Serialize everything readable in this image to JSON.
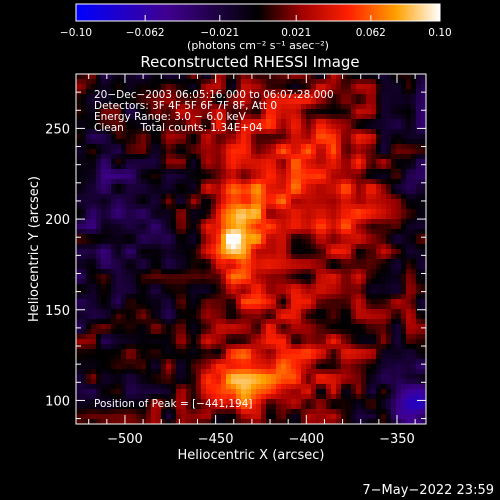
{
  "chart_data": {
    "type": "heatmap",
    "title": "Reconstructed RHESSI Image",
    "xlabel": "Heliocentric X (arcsec)",
    "ylabel": "Heliocentric Y (arcsec)",
    "xlim": [
      -527,
      -334
    ],
    "ylim": [
      87,
      280
    ],
    "xticks": [
      -500,
      -450,
      -400,
      -350
    ],
    "xtick_labels": [
      "−500",
      "−450",
      "−400",
      "−350"
    ],
    "yticks": [
      100,
      150,
      200,
      250
    ],
    "ytick_labels": [
      "100",
      "150",
      "200",
      "250"
    ],
    "colorbar": {
      "range": [
        -0.1,
        0.1
      ],
      "tick_values": [
        -0.1,
        -0.062,
        -0.021,
        0.021,
        0.062,
        0.1
      ],
      "tick_labels": [
        "−0.10",
        "−0.062",
        "−0.021",
        "0.021",
        "0.062",
        "0.10"
      ],
      "units": "(photons cm⁻² s⁻¹ asec⁻²)"
    },
    "annotations": [
      "20−Dec−2003 06:05:16.000 to 06:07:28.000",
      "Detectors: 3F 4F 5F 6F 7F 8F, Att 0",
      "Energy Range: 3.0 − 6.0 keV",
      "Clean     Total counts: 1.34E+04"
    ],
    "peak_label": "Position of Peak = [−441,194]",
    "peak": [
      -441,
      194
    ],
    "sources": [
      {
        "x": -441,
        "y": 196,
        "sx": 7,
        "sy": 14,
        "amp": 0.065
      },
      {
        "x": -430,
        "y": 205,
        "sx": 16,
        "sy": 20,
        "amp": 0.035
      },
      {
        "x": -428,
        "y": 165,
        "sx": 14,
        "sy": 16,
        "amp": 0.035
      },
      {
        "x": -425,
        "y": 115,
        "sx": 22,
        "sy": 14,
        "amp": 0.045
      },
      {
        "x": -440,
        "y": 105,
        "sx": 14,
        "sy": 9,
        "amp": 0.03
      },
      {
        "x": -398,
        "y": 222,
        "sx": 22,
        "sy": 18,
        "amp": 0.03
      },
      {
        "x": -380,
        "y": 200,
        "sx": 16,
        "sy": 22,
        "amp": 0.025
      },
      {
        "x": -460,
        "y": 252,
        "sx": 28,
        "sy": 12,
        "amp": 0.02
      },
      {
        "x": -390,
        "y": 140,
        "sx": 20,
        "sy": 18,
        "amp": 0.015
      },
      {
        "x": -400,
        "y": 255,
        "sx": 26,
        "sy": 14,
        "amp": 0.02
      },
      {
        "x": -342,
        "y": 100,
        "sx": 9,
        "sy": 14,
        "amp": -0.06
      },
      {
        "x": -505,
        "y": 205,
        "sx": 24,
        "sy": 55,
        "amp": -0.025
      },
      {
        "x": -340,
        "y": 250,
        "sx": 14,
        "sy": 28,
        "amp": -0.02
      }
    ]
  },
  "timestamp": "7−May−2022 23:59"
}
